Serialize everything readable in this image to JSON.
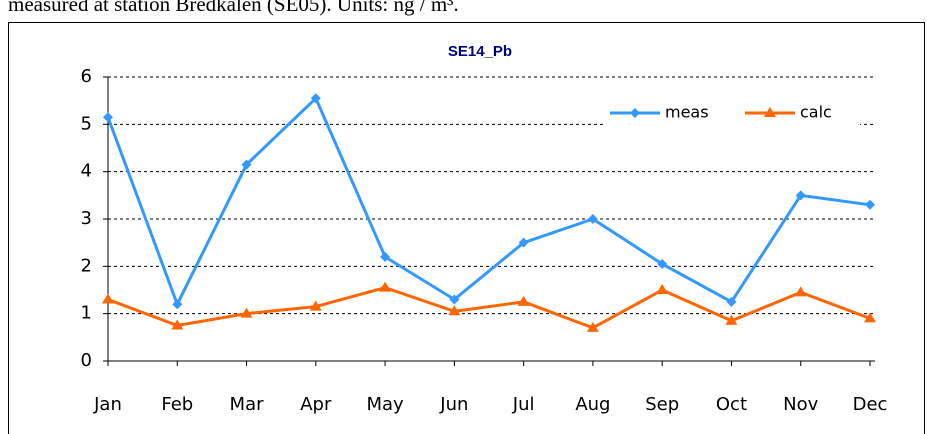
{
  "caption": "measured at station Bredkälen (SE05). Units: ng / m³.",
  "chart_data": {
    "type": "line",
    "title": "SE14_Pb",
    "categories": [
      "Jan",
      "Feb",
      "Mar",
      "Apr",
      "May",
      "Jun",
      "Jul",
      "Aug",
      "Sep",
      "Oct",
      "Nov",
      "Dec"
    ],
    "series": [
      {
        "name": "meas",
        "color": "#3399ff",
        "values": [
          5.15,
          1.2,
          4.15,
          5.55,
          2.2,
          1.3,
          2.5,
          3.0,
          2.05,
          1.25,
          3.5,
          3.3
        ]
      },
      {
        "name": "calc",
        "color": "#ff6600",
        "values": [
          1.3,
          0.75,
          1.0,
          1.15,
          1.55,
          1.05,
          1.25,
          0.7,
          1.5,
          0.85,
          1.45,
          0.9
        ]
      }
    ],
    "ylim": [
      0,
      6
    ],
    "yticks": [
      0,
      1,
      2,
      3,
      4,
      5,
      6
    ],
    "grid": true,
    "legend": "top-right"
  }
}
